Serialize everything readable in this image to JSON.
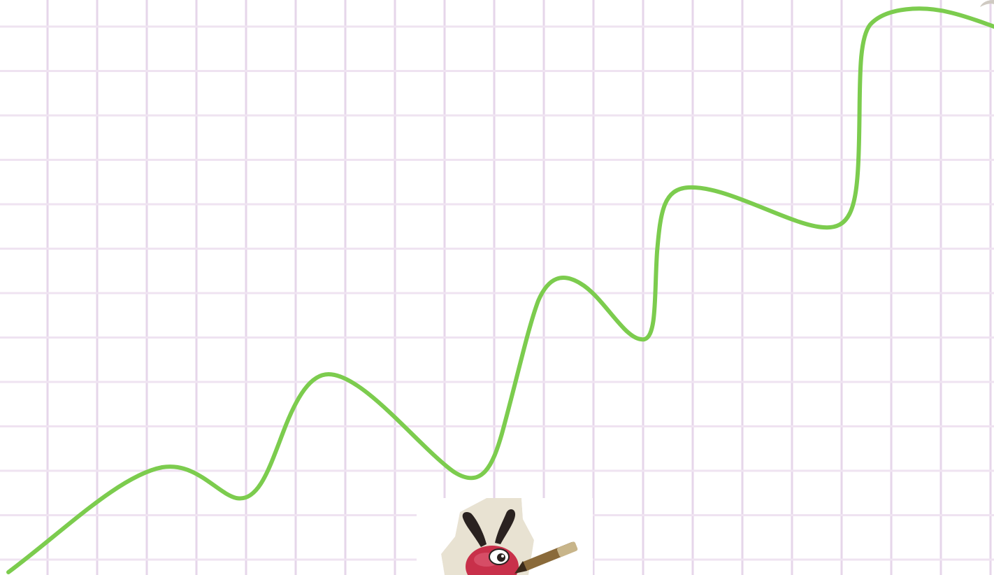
{
  "background": {
    "paper_color": "#ffffff",
    "grid_line_color": "#e6d6ea",
    "grid_line_color_soft": "#efe3f1"
  },
  "curve": {
    "color": "#7ccc4e",
    "description_icon": "wavy-rising-line"
  },
  "mascot": {
    "icon": "cartoon-ant-with-pencil-icon",
    "body_color": "#c8304a",
    "antenna_color": "#2a2220"
  }
}
